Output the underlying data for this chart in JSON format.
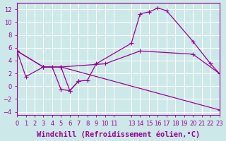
{
  "background_color": "#cce8e8",
  "line_color": "#990099",
  "grid_color": "#ffffff",
  "xlabel": "Windchill (Refroidissement éolien,°C)",
  "xlabel_fontsize": 7.5,
  "tick_fontsize": 6,
  "xlim": [
    0,
    23
  ],
  "ylim": [
    -4.5,
    13
  ],
  "yticks": [
    -4,
    -2,
    0,
    2,
    4,
    6,
    8,
    10,
    12
  ],
  "xticks": [
    0,
    1,
    2,
    3,
    4,
    5,
    6,
    7,
    8,
    9,
    10,
    11,
    13,
    14,
    15,
    16,
    17,
    18,
    19,
    20,
    21,
    22,
    23
  ],
  "xtick_labels": [
    "0",
    "1",
    "2",
    "3",
    "4",
    "5",
    "6",
    "7",
    "8",
    "9",
    "10",
    "11",
    "13",
    "14",
    "15",
    "16",
    "17",
    "18",
    "19",
    "20",
    "21",
    "22",
    "23"
  ],
  "series": [
    {
      "x": [
        0,
        1,
        3,
        4,
        5,
        6,
        7,
        8,
        9,
        13,
        14,
        15,
        16,
        17,
        20,
        22,
        23
      ],
      "y": [
        5.5,
        1.5,
        3.0,
        3.0,
        -0.5,
        -0.7,
        0.8,
        0.9,
        3.5,
        6.7,
        11.3,
        11.6,
        12.2,
        11.8,
        7.0,
        3.5,
        2.0
      ]
    },
    {
      "x": [
        0,
        3,
        5,
        23
      ],
      "y": [
        5.5,
        3.0,
        3.0,
        -3.7
      ]
    },
    {
      "x": [
        0,
        3,
        5,
        10,
        14,
        20,
        23
      ],
      "y": [
        5.5,
        3.0,
        3.0,
        3.5,
        5.5,
        5.0,
        2.0
      ]
    },
    {
      "x": [
        5,
        6,
        7
      ],
      "y": [
        3.0,
        -0.7,
        0.8
      ]
    }
  ]
}
